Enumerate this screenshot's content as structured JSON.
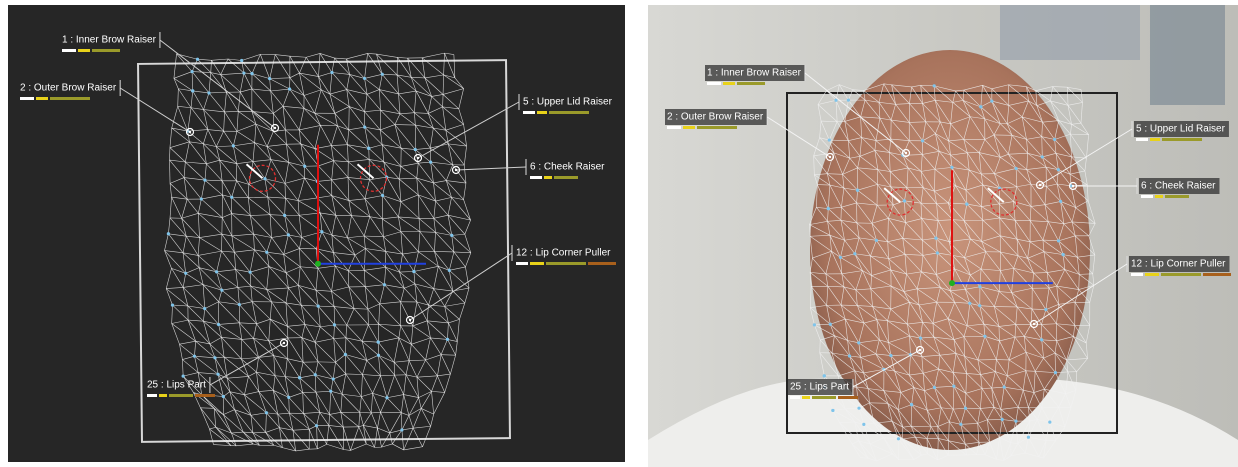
{
  "panels": [
    {
      "labels": [
        "1 : Inner Brow Raiser",
        "2 : Outer Brow Raiser",
        "5 : Upper Lid Raiser",
        "6 : Cheek Raiser",
        "12 : Lip Corner Puller",
        "25 : Lips Part"
      ]
    },
    {
      "labels": [
        "1 : Inner Brow Raiser",
        "2 : Outer Brow Raiser",
        "5 : Upper Lid Raiser",
        "6 : Cheek Raiser",
        "12 : Lip Corner Puller",
        "25 : Lips Part"
      ]
    }
  ]
}
